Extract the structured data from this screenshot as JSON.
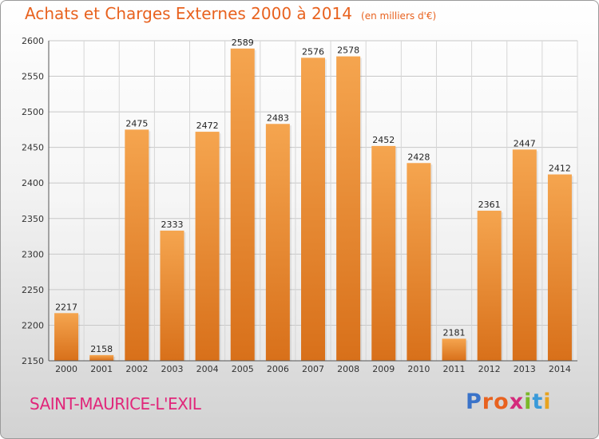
{
  "header": {
    "title": "Achats et Charges Externes 2000 à 2014",
    "subtitle": "(en milliers d'€)"
  },
  "footer": {
    "commune": "SAINT-MAURICE-L'EXIL",
    "logo": {
      "text": "Proxiti",
      "letters": [
        "P",
        "r",
        "o",
        "x",
        "i",
        "t",
        "i"
      ]
    }
  },
  "colors": {
    "title": "#e8621f",
    "commune": "#e1267a",
    "bar_top": "#f5a54f",
    "bar_bottom": "#d8701a",
    "logo_letters": [
      "#3a73c9",
      "#e8621f",
      "#e8621f",
      "#d42a7c",
      "#7ab829",
      "#3a9ad9",
      "#e8a31f"
    ]
  },
  "chart_data": {
    "type": "bar",
    "title": "Achats et Charges Externes 2000 à 2014",
    "subtitle": "(en milliers d'€)",
    "categories": [
      "2000",
      "2001",
      "2002",
      "2003",
      "2004",
      "2005",
      "2006",
      "2007",
      "2008",
      "2009",
      "2010",
      "2011",
      "2012",
      "2013",
      "2014"
    ],
    "values": [
      2217,
      2158,
      2475,
      2333,
      2472,
      2589,
      2483,
      2576,
      2578,
      2452,
      2428,
      2181,
      2361,
      2447,
      2412
    ],
    "ylim": [
      2150,
      2600
    ],
    "yticks": [
      2150,
      2200,
      2250,
      2300,
      2350,
      2400,
      2450,
      2500,
      2550,
      2600
    ],
    "grid": true,
    "xlabel": "",
    "ylabel": ""
  }
}
